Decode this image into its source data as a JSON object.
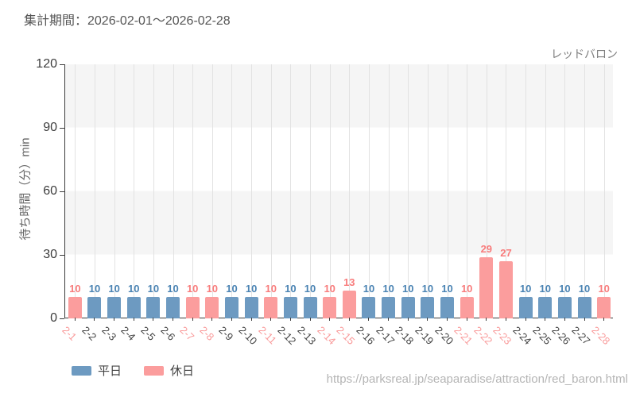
{
  "header": {
    "title": "集計期間：2026-02-01～2026-02-28",
    "attraction_name": "レッドバロン"
  },
  "chart_data": {
    "type": "bar",
    "title": "集計期間：2026-02-01～2026-02-28",
    "subtitle": "レッドバロン",
    "xlabel": "",
    "ylabel": "待ち時間（分）min",
    "ylim": [
      0,
      120
    ],
    "yticks": [
      0,
      30,
      60,
      90,
      120
    ],
    "grid": true,
    "legend_position": "bottom-left",
    "categories": [
      "2-1",
      "2-2",
      "2-3",
      "2-4",
      "2-5",
      "2-6",
      "2-7",
      "2-8",
      "2-9",
      "2-10",
      "2-11",
      "2-12",
      "2-13",
      "2-14",
      "2-15",
      "2-16",
      "2-17",
      "2-18",
      "2-19",
      "2-20",
      "2-21",
      "2-22",
      "2-23",
      "2-24",
      "2-25",
      "2-26",
      "2-27",
      "2-28"
    ],
    "values": [
      10,
      10,
      10,
      10,
      10,
      10,
      10,
      10,
      10,
      10,
      10,
      10,
      10,
      10,
      13,
      10,
      10,
      10,
      10,
      10,
      10,
      29,
      27,
      10,
      10,
      10,
      10,
      10
    ],
    "day_types": [
      "holiday",
      "weekday",
      "weekday",
      "weekday",
      "weekday",
      "weekday",
      "holiday",
      "holiday",
      "weekday",
      "weekday",
      "holiday",
      "weekday",
      "weekday",
      "holiday",
      "holiday",
      "weekday",
      "weekday",
      "weekday",
      "weekday",
      "weekday",
      "holiday",
      "holiday",
      "holiday",
      "weekday",
      "weekday",
      "weekday",
      "weekday",
      "holiday"
    ],
    "colors": {
      "weekday_bar": "#6d9ac1",
      "holiday_bar": "#fb9d9d",
      "weekday_value_label": "#4a83b3",
      "holiday_value_label": "#f87c7c",
      "weekday_axis_label": "#424242",
      "holiday_axis_label": "#f99a9a",
      "band_gray": "#f5f5f5",
      "gridline": "#e2e2e2",
      "axis": "#3c3c3c"
    }
  },
  "legend": {
    "items": [
      {
        "label": "平日",
        "color": "#6d9ac1",
        "type": "weekday"
      },
      {
        "label": "休日",
        "color": "#fb9d9d",
        "type": "holiday"
      }
    ]
  },
  "footer": {
    "url": "https://parksreal.jp/seaparadise/attraction/red_baron.html"
  }
}
